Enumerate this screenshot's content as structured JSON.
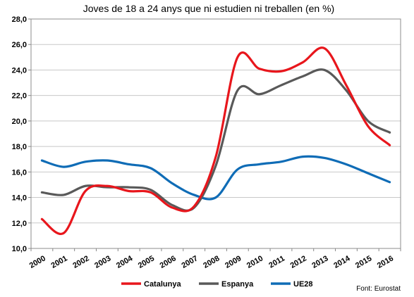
{
  "chart_data": {
    "type": "line",
    "title": "Joves de 18 a 24 anys que ni estudien ni treballen (en %)",
    "source": "Font: Eurostat",
    "categories": [
      "2000",
      "2001",
      "2002",
      "2003",
      "2004",
      "2005",
      "2006",
      "2007",
      "2008",
      "2009",
      "2010",
      "2011",
      "2012",
      "2013",
      "2014",
      "2015",
      "2016"
    ],
    "y_tick_labels": [
      "10,0",
      "12,0",
      "14,0",
      "16,0",
      "18,0",
      "20,0",
      "22,0",
      "24,0",
      "26,0",
      "28,0"
    ],
    "ylim": [
      10,
      28
    ],
    "y_step": 2,
    "grid": true,
    "legend_position": "bottom",
    "series": [
      {
        "name": "Catalunya",
        "color": "#e8161c",
        "values": [
          12.3,
          11.2,
          14.5,
          14.9,
          14.5,
          14.4,
          13.2,
          13.3,
          17.2,
          25.0,
          24.1,
          23.9,
          24.6,
          25.7,
          22.8,
          19.6,
          18.1
        ]
      },
      {
        "name": "Espanya",
        "color": "#595959",
        "values": [
          14.4,
          14.2,
          14.9,
          14.8,
          14.8,
          14.6,
          13.4,
          13.2,
          16.5,
          22.4,
          22.1,
          22.8,
          23.5,
          24.0,
          22.4,
          20.0,
          19.1
        ]
      },
      {
        "name": "UE28",
        "color": "#0f6cb6",
        "values": [
          16.9,
          16.4,
          16.8,
          16.9,
          16.6,
          16.3,
          15.1,
          14.2,
          14.0,
          16.2,
          16.6,
          16.8,
          17.2,
          17.1,
          16.6,
          15.9,
          15.2
        ]
      }
    ]
  }
}
